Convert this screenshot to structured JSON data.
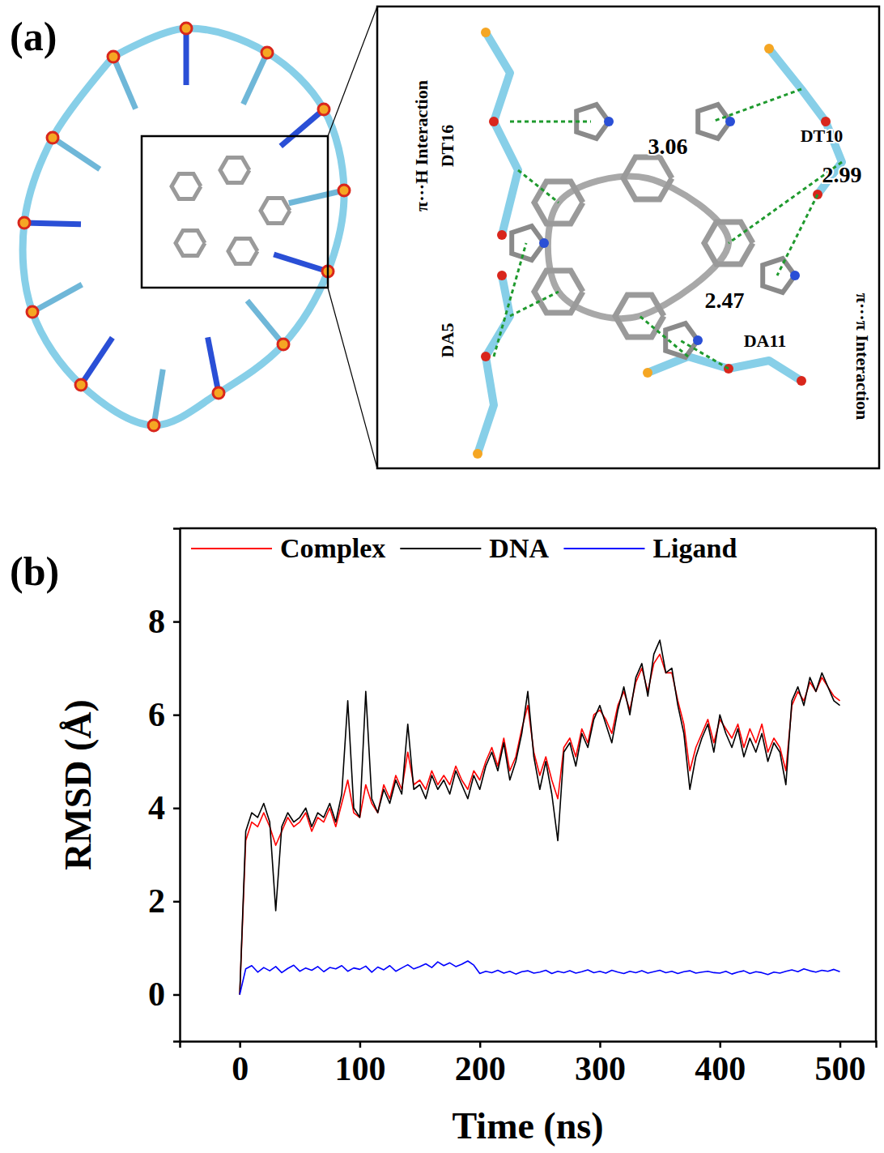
{
  "panel_a": {
    "label": "(a)",
    "annotations": [
      "3.06",
      "2.99",
      "2.47",
      "DT10",
      "DT16",
      "DA5",
      "DA11",
      "π···H Interaction",
      "π···π Interaction"
    ]
  },
  "chart_data": {
    "type": "line",
    "panel_label": "(b)",
    "x_label": "Time (ns)",
    "y_label": "RMSD (Å)",
    "xlim": [
      -50,
      530
    ],
    "xticks": [
      0,
      100,
      200,
      300,
      400,
      500
    ],
    "ylim": [
      -1,
      10
    ],
    "yticks": [
      0,
      2,
      4,
      6,
      8
    ],
    "legend": "top",
    "x": [
      0,
      5,
      10,
      15,
      20,
      25,
      30,
      35,
      40,
      45,
      50,
      55,
      60,
      65,
      70,
      75,
      80,
      85,
      90,
      95,
      100,
      105,
      110,
      115,
      120,
      125,
      130,
      135,
      140,
      145,
      150,
      155,
      160,
      165,
      170,
      175,
      180,
      185,
      190,
      195,
      200,
      205,
      210,
      215,
      220,
      225,
      230,
      235,
      240,
      245,
      250,
      255,
      260,
      265,
      270,
      275,
      280,
      285,
      290,
      295,
      300,
      305,
      310,
      315,
      320,
      325,
      330,
      335,
      340,
      345,
      350,
      355,
      360,
      365,
      370,
      375,
      380,
      385,
      390,
      395,
      400,
      405,
      410,
      415,
      420,
      425,
      430,
      435,
      440,
      445,
      450,
      455,
      460,
      465,
      470,
      475,
      480,
      485,
      490,
      495,
      500
    ],
    "series": [
      {
        "name": "Complex",
        "color": "#ff0000",
        "values": [
          0.0,
          3.3,
          3.7,
          3.6,
          3.9,
          3.6,
          3.2,
          3.5,
          3.8,
          3.6,
          3.7,
          3.9,
          3.5,
          3.8,
          3.7,
          4.0,
          3.6,
          4.1,
          4.6,
          3.9,
          3.8,
          4.5,
          4.1,
          3.9,
          4.5,
          4.2,
          4.7,
          4.4,
          5.2,
          4.5,
          4.6,
          4.4,
          4.8,
          4.5,
          4.7,
          4.5,
          4.9,
          4.6,
          4.4,
          4.8,
          4.6,
          5.0,
          5.3,
          4.9,
          5.5,
          4.8,
          5.1,
          5.7,
          6.2,
          5.2,
          4.7,
          5.1,
          4.6,
          4.2,
          5.3,
          5.5,
          5.1,
          5.7,
          5.4,
          6.0,
          6.1,
          5.9,
          5.6,
          6.2,
          6.5,
          6.1,
          6.7,
          7.0,
          6.5,
          7.1,
          7.3,
          6.9,
          6.9,
          6.3,
          5.8,
          4.8,
          5.3,
          5.6,
          5.9,
          5.4,
          5.9,
          5.7,
          5.5,
          5.8,
          5.3,
          5.7,
          5.4,
          5.8,
          5.2,
          5.5,
          5.3,
          4.8,
          6.2,
          6.5,
          6.3,
          6.7,
          6.5,
          6.8,
          6.6,
          6.4,
          6.3
        ]
      },
      {
        "name": "DNA",
        "color": "#000000",
        "values": [
          0.0,
          3.5,
          3.9,
          3.8,
          4.1,
          3.7,
          1.8,
          3.6,
          3.9,
          3.7,
          3.8,
          4.0,
          3.6,
          3.9,
          3.8,
          4.1,
          3.7,
          4.3,
          6.3,
          4.0,
          3.8,
          6.5,
          4.2,
          3.9,
          4.4,
          4.1,
          4.6,
          4.3,
          5.8,
          4.4,
          4.5,
          4.2,
          4.7,
          4.4,
          4.6,
          4.3,
          4.8,
          4.5,
          4.2,
          4.7,
          4.4,
          4.9,
          5.2,
          4.8,
          5.4,
          4.6,
          5.0,
          5.6,
          6.5,
          5.1,
          4.4,
          5.0,
          4.3,
          3.3,
          5.2,
          5.4,
          4.9,
          5.6,
          5.3,
          5.9,
          6.2,
          5.8,
          5.4,
          6.1,
          6.6,
          6.0,
          6.8,
          7.1,
          6.4,
          7.3,
          7.6,
          6.9,
          7.0,
          6.2,
          5.6,
          4.4,
          5.1,
          5.5,
          5.8,
          5.2,
          6.0,
          5.6,
          5.3,
          5.7,
          5.1,
          5.5,
          5.2,
          5.6,
          5.0,
          5.4,
          5.2,
          4.5,
          6.3,
          6.6,
          6.2,
          6.8,
          6.5,
          6.9,
          6.6,
          6.3,
          6.2
        ]
      },
      {
        "name": "Ligand",
        "color": "#0000ff",
        "values": [
          0.0,
          0.55,
          0.62,
          0.48,
          0.58,
          0.51,
          0.6,
          0.47,
          0.56,
          0.63,
          0.5,
          0.57,
          0.52,
          0.6,
          0.49,
          0.58,
          0.55,
          0.62,
          0.5,
          0.57,
          0.54,
          0.61,
          0.48,
          0.59,
          0.53,
          0.62,
          0.5,
          0.57,
          0.64,
          0.55,
          0.6,
          0.66,
          0.58,
          0.7,
          0.62,
          0.68,
          0.6,
          0.65,
          0.72,
          0.63,
          0.45,
          0.5,
          0.47,
          0.52,
          0.46,
          0.5,
          0.44,
          0.49,
          0.51,
          0.46,
          0.48,
          0.52,
          0.45,
          0.5,
          0.47,
          0.51,
          0.46,
          0.49,
          0.53,
          0.47,
          0.5,
          0.46,
          0.52,
          0.48,
          0.45,
          0.5,
          0.47,
          0.51,
          0.46,
          0.49,
          0.52,
          0.47,
          0.5,
          0.45,
          0.49,
          0.51,
          0.46,
          0.48,
          0.5,
          0.47,
          0.46,
          0.5,
          0.44,
          0.48,
          0.51,
          0.45,
          0.49,
          0.47,
          0.43,
          0.48,
          0.46,
          0.5,
          0.53,
          0.49,
          0.55,
          0.51,
          0.48,
          0.52,
          0.5,
          0.54,
          0.49
        ]
      }
    ]
  }
}
